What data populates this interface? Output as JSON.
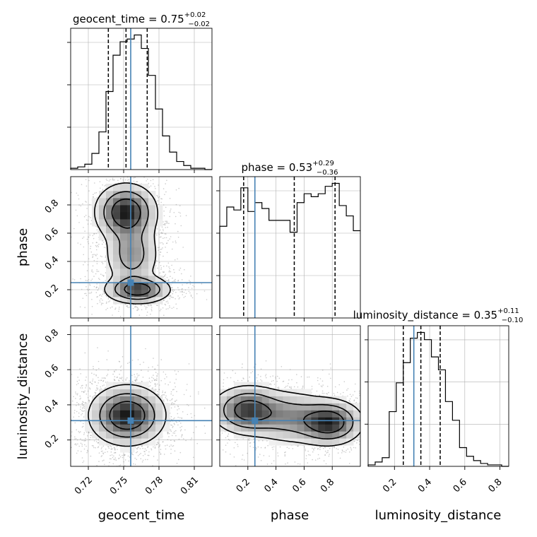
{
  "chart_data": {
    "type": "corner",
    "parameters": [
      "geocent_time",
      "phase",
      "luminosity_distance"
    ],
    "truth": {
      "geocent_time": 0.756,
      "phase": 0.25,
      "luminosity_distance": 0.31
    },
    "colors": {
      "truth": "#4682b4",
      "hist": "#000000",
      "grid": "#b0b0b0"
    },
    "titles": [
      {
        "param": "geocent_time",
        "median": "0.75",
        "plus": "+0.02",
        "minus": "−0.02"
      },
      {
        "param": "phase",
        "median": "0.53",
        "plus": "+0.29",
        "minus": "−0.36"
      },
      {
        "param": "luminosity_distance",
        "median": "0.35",
        "plus": "+0.11",
        "minus": "−0.10"
      }
    ],
    "axes": {
      "geocent_time": {
        "range": [
          0.705,
          0.825
        ],
        "ticks": [
          0.72,
          0.75,
          0.78,
          0.81
        ],
        "tick_labels": [
          "0.72",
          "0.75",
          "0.78",
          "0.81"
        ],
        "label": "geocent_time"
      },
      "phase": {
        "range": [
          0.0,
          1.0
        ],
        "ticks": [
          0.2,
          0.4,
          0.6,
          0.8
        ],
        "tick_labels": [
          "0.2",
          "0.4",
          "0.6",
          "0.8"
        ],
        "label": "phase"
      },
      "luminosity_distance": {
        "range": [
          0.05,
          0.85
        ],
        "ticks": [
          0.2,
          0.4,
          0.6,
          0.8
        ],
        "tick_labels": [
          "0.2",
          "0.4",
          "0.6",
          "0.8"
        ],
        "label": "luminosity_distance"
      }
    },
    "histograms": [
      {
        "param": "geocent_time",
        "bin_edges": [
          0.705,
          0.711,
          0.717,
          0.723,
          0.729,
          0.735,
          0.741,
          0.747,
          0.753,
          0.759,
          0.765,
          0.771,
          0.777,
          0.783,
          0.789,
          0.795,
          0.801,
          0.807,
          0.813,
          0.819,
          0.825
        ],
        "counts": [
          1,
          2,
          4,
          12,
          28,
          58,
          85,
          95,
          97,
          100,
          90,
          70,
          45,
          25,
          13,
          6,
          3,
          1,
          1,
          0
        ],
        "quantiles": [
          0.737,
          0.752,
          0.77
        ]
      },
      {
        "param": "phase",
        "bin_edges": [
          0.0,
          0.05,
          0.1,
          0.15,
          0.2,
          0.25,
          0.3,
          0.35,
          0.4,
          0.45,
          0.5,
          0.55,
          0.6,
          0.65,
          0.7,
          0.75,
          0.8,
          0.85,
          0.9,
          0.95,
          1.0
        ],
        "counts": [
          62,
          75,
          73,
          88,
          72,
          78,
          74,
          66,
          66,
          66,
          58,
          78,
          84,
          82,
          84,
          89,
          91,
          76,
          69,
          59
        ],
        "quantiles": [
          0.17,
          0.53,
          0.82
        ]
      },
      {
        "param": "luminosity_distance",
        "bin_edges": [
          0.05,
          0.09,
          0.13,
          0.17,
          0.21,
          0.25,
          0.29,
          0.33,
          0.37,
          0.41,
          0.45,
          0.49,
          0.53,
          0.57,
          0.61,
          0.65,
          0.69,
          0.73,
          0.77,
          0.81,
          0.85
        ],
        "counts": [
          1,
          3,
          6,
          38,
          58,
          72,
          89,
          93,
          88,
          76,
          67,
          45,
          32,
          13,
          7,
          4,
          2,
          1,
          1,
          0
        ],
        "quantiles": [
          0.25,
          0.35,
          0.46
        ]
      }
    ],
    "density_2d": [
      {
        "x": "geocent_time",
        "y": "phase",
        "components": [
          {
            "mx": 0.752,
            "my": 0.75,
            "sx": 0.013,
            "sy": 0.1,
            "w": 1.0
          },
          {
            "mx": 0.762,
            "my": 0.2,
            "sx": 0.014,
            "sy": 0.05,
            "w": 0.85
          },
          {
            "mx": 0.757,
            "my": 0.45,
            "sx": 0.012,
            "sy": 0.12,
            "w": 0.5
          }
        ]
      },
      {
        "x": "geocent_time",
        "y": "luminosity_distance",
        "components": [
          {
            "mx": 0.753,
            "my": 0.34,
            "sx": 0.016,
            "sy": 0.085,
            "w": 1.0
          }
        ]
      },
      {
        "x": "phase",
        "y": "luminosity_distance",
        "components": [
          {
            "mx": 0.2,
            "my": 0.37,
            "sx": 0.13,
            "sy": 0.07,
            "w": 0.9
          },
          {
            "mx": 0.78,
            "my": 0.3,
            "sx": 0.12,
            "sy": 0.065,
            "w": 1.0
          },
          {
            "mx": 0.5,
            "my": 0.33,
            "sx": 0.15,
            "sy": 0.08,
            "w": 0.5
          }
        ]
      }
    ]
  }
}
